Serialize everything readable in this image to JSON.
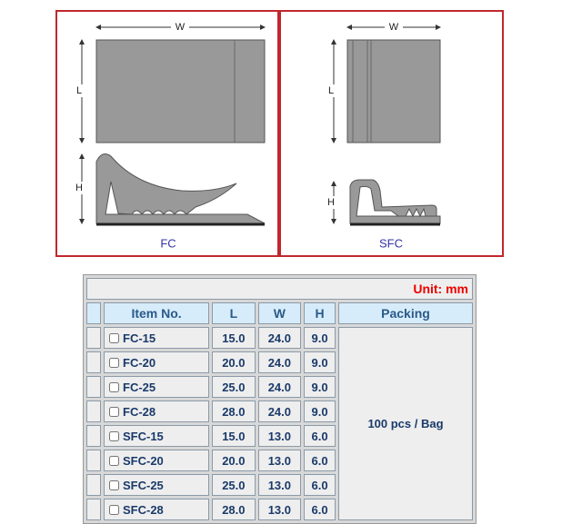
{
  "diagrams": [
    {
      "label": "FC",
      "dims": {
        "width": "W",
        "length": "L",
        "height": "H"
      }
    },
    {
      "label": "SFC",
      "dims": {
        "width": "W",
        "length": "L",
        "height": "H"
      }
    }
  ],
  "table": {
    "unit": "Unit: mm",
    "headers": [
      "Item No.",
      "L",
      "W",
      "H",
      "Packing"
    ],
    "rows": [
      [
        "FC-15",
        "15.0",
        "24.0",
        "9.0"
      ],
      [
        "FC-20",
        "20.0",
        "24.0",
        "9.0"
      ],
      [
        "FC-25",
        "25.0",
        "24.0",
        "9.0"
      ],
      [
        "FC-28",
        "28.0",
        "24.0",
        "9.0"
      ],
      [
        "SFC-15",
        "15.0",
        "13.0",
        "6.0"
      ],
      [
        "SFC-20",
        "20.0",
        "13.0",
        "6.0"
      ],
      [
        "SFC-25",
        "25.0",
        "13.0",
        "6.0"
      ],
      [
        "SFC-28",
        "28.0",
        "13.0",
        "6.0"
      ]
    ],
    "packing": "100 pcs / Bag"
  }
}
